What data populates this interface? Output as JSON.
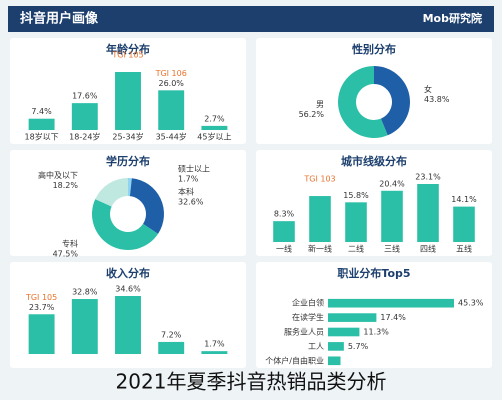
{
  "header": {
    "title": "抖音用户画像",
    "logo": "Mob研究院"
  },
  "chart_data": [
    {
      "type": "bar",
      "title": "年龄分布",
      "categories": [
        "18岁以下",
        "18-24岁",
        "25-34岁",
        "35-44岁",
        "45岁以上"
      ],
      "values": [
        7.4,
        17.6,
        38.0,
        26.0,
        2.7
      ],
      "value_labels": [
        "7.4%",
        "17.6%",
        null,
        "26.0%",
        "2.7%"
      ],
      "color": "#2bbfa8",
      "annotations": [
        {
          "text": "TGI 105",
          "at": "25-34岁"
        },
        {
          "text": "TGI 106",
          "at": "35-44岁"
        }
      ]
    },
    {
      "type": "pie",
      "title": "性别分布",
      "categories": [
        "女",
        "男"
      ],
      "values": [
        43.8,
        56.2
      ],
      "value_labels": [
        "43.8%",
        "56.2%"
      ],
      "colors": [
        "#1f5fa8",
        "#2bbfa8"
      ]
    },
    {
      "type": "pie",
      "title": "学历分布",
      "categories": [
        "硕士以上",
        "本科",
        "专科",
        "高中及以下"
      ],
      "values": [
        1.7,
        32.6,
        47.5,
        18.2
      ],
      "value_labels": [
        "1.7%",
        "32.6%",
        "47.5%",
        "18.2%"
      ],
      "colors": [
        "#8fd4f0",
        "#1f5fa8",
        "#2bbfa8",
        "#bfe8e0"
      ]
    },
    {
      "type": "bar",
      "title": "城市线级分布",
      "categories": [
        "一线",
        "新一线",
        "二线",
        "三线",
        "四线",
        "五线"
      ],
      "values": [
        8.3,
        18.3,
        15.8,
        20.4,
        23.1,
        14.1
      ],
      "value_labels": [
        "8.3%",
        null,
        "15.8%",
        "20.4%",
        "23.1%",
        "14.1%"
      ],
      "color": "#2bbfa8",
      "annotations": [
        {
          "text": "TGI 103",
          "at": "新一线"
        }
      ]
    },
    {
      "type": "bar",
      "title": "收入分布",
      "categories": [
        null,
        null,
        null,
        null,
        null
      ],
      "values": [
        23.7,
        32.8,
        34.6,
        7.2,
        1.7
      ],
      "value_labels": [
        "23.7%",
        "32.8%",
        "34.6%",
        "7.2%",
        "1.7%"
      ],
      "color": "#2bbfa8",
      "annotations": [
        {
          "text": "TGI 105",
          "at": null
        }
      ]
    },
    {
      "type": "hbar",
      "title": "职业分布Top5",
      "categories": [
        "企业白领",
        "在读学生",
        "服务业人员",
        "工人",
        "个体户/自由职业"
      ],
      "values": [
        45.3,
        17.4,
        11.3,
        5.7,
        4.5
      ],
      "value_labels": [
        "45.3%",
        "17.4%",
        "11.3%",
        "5.7%",
        null
      ],
      "color": "#2bbfa8"
    }
  ],
  "caption": "2021年夏季抖音热销品类分析"
}
